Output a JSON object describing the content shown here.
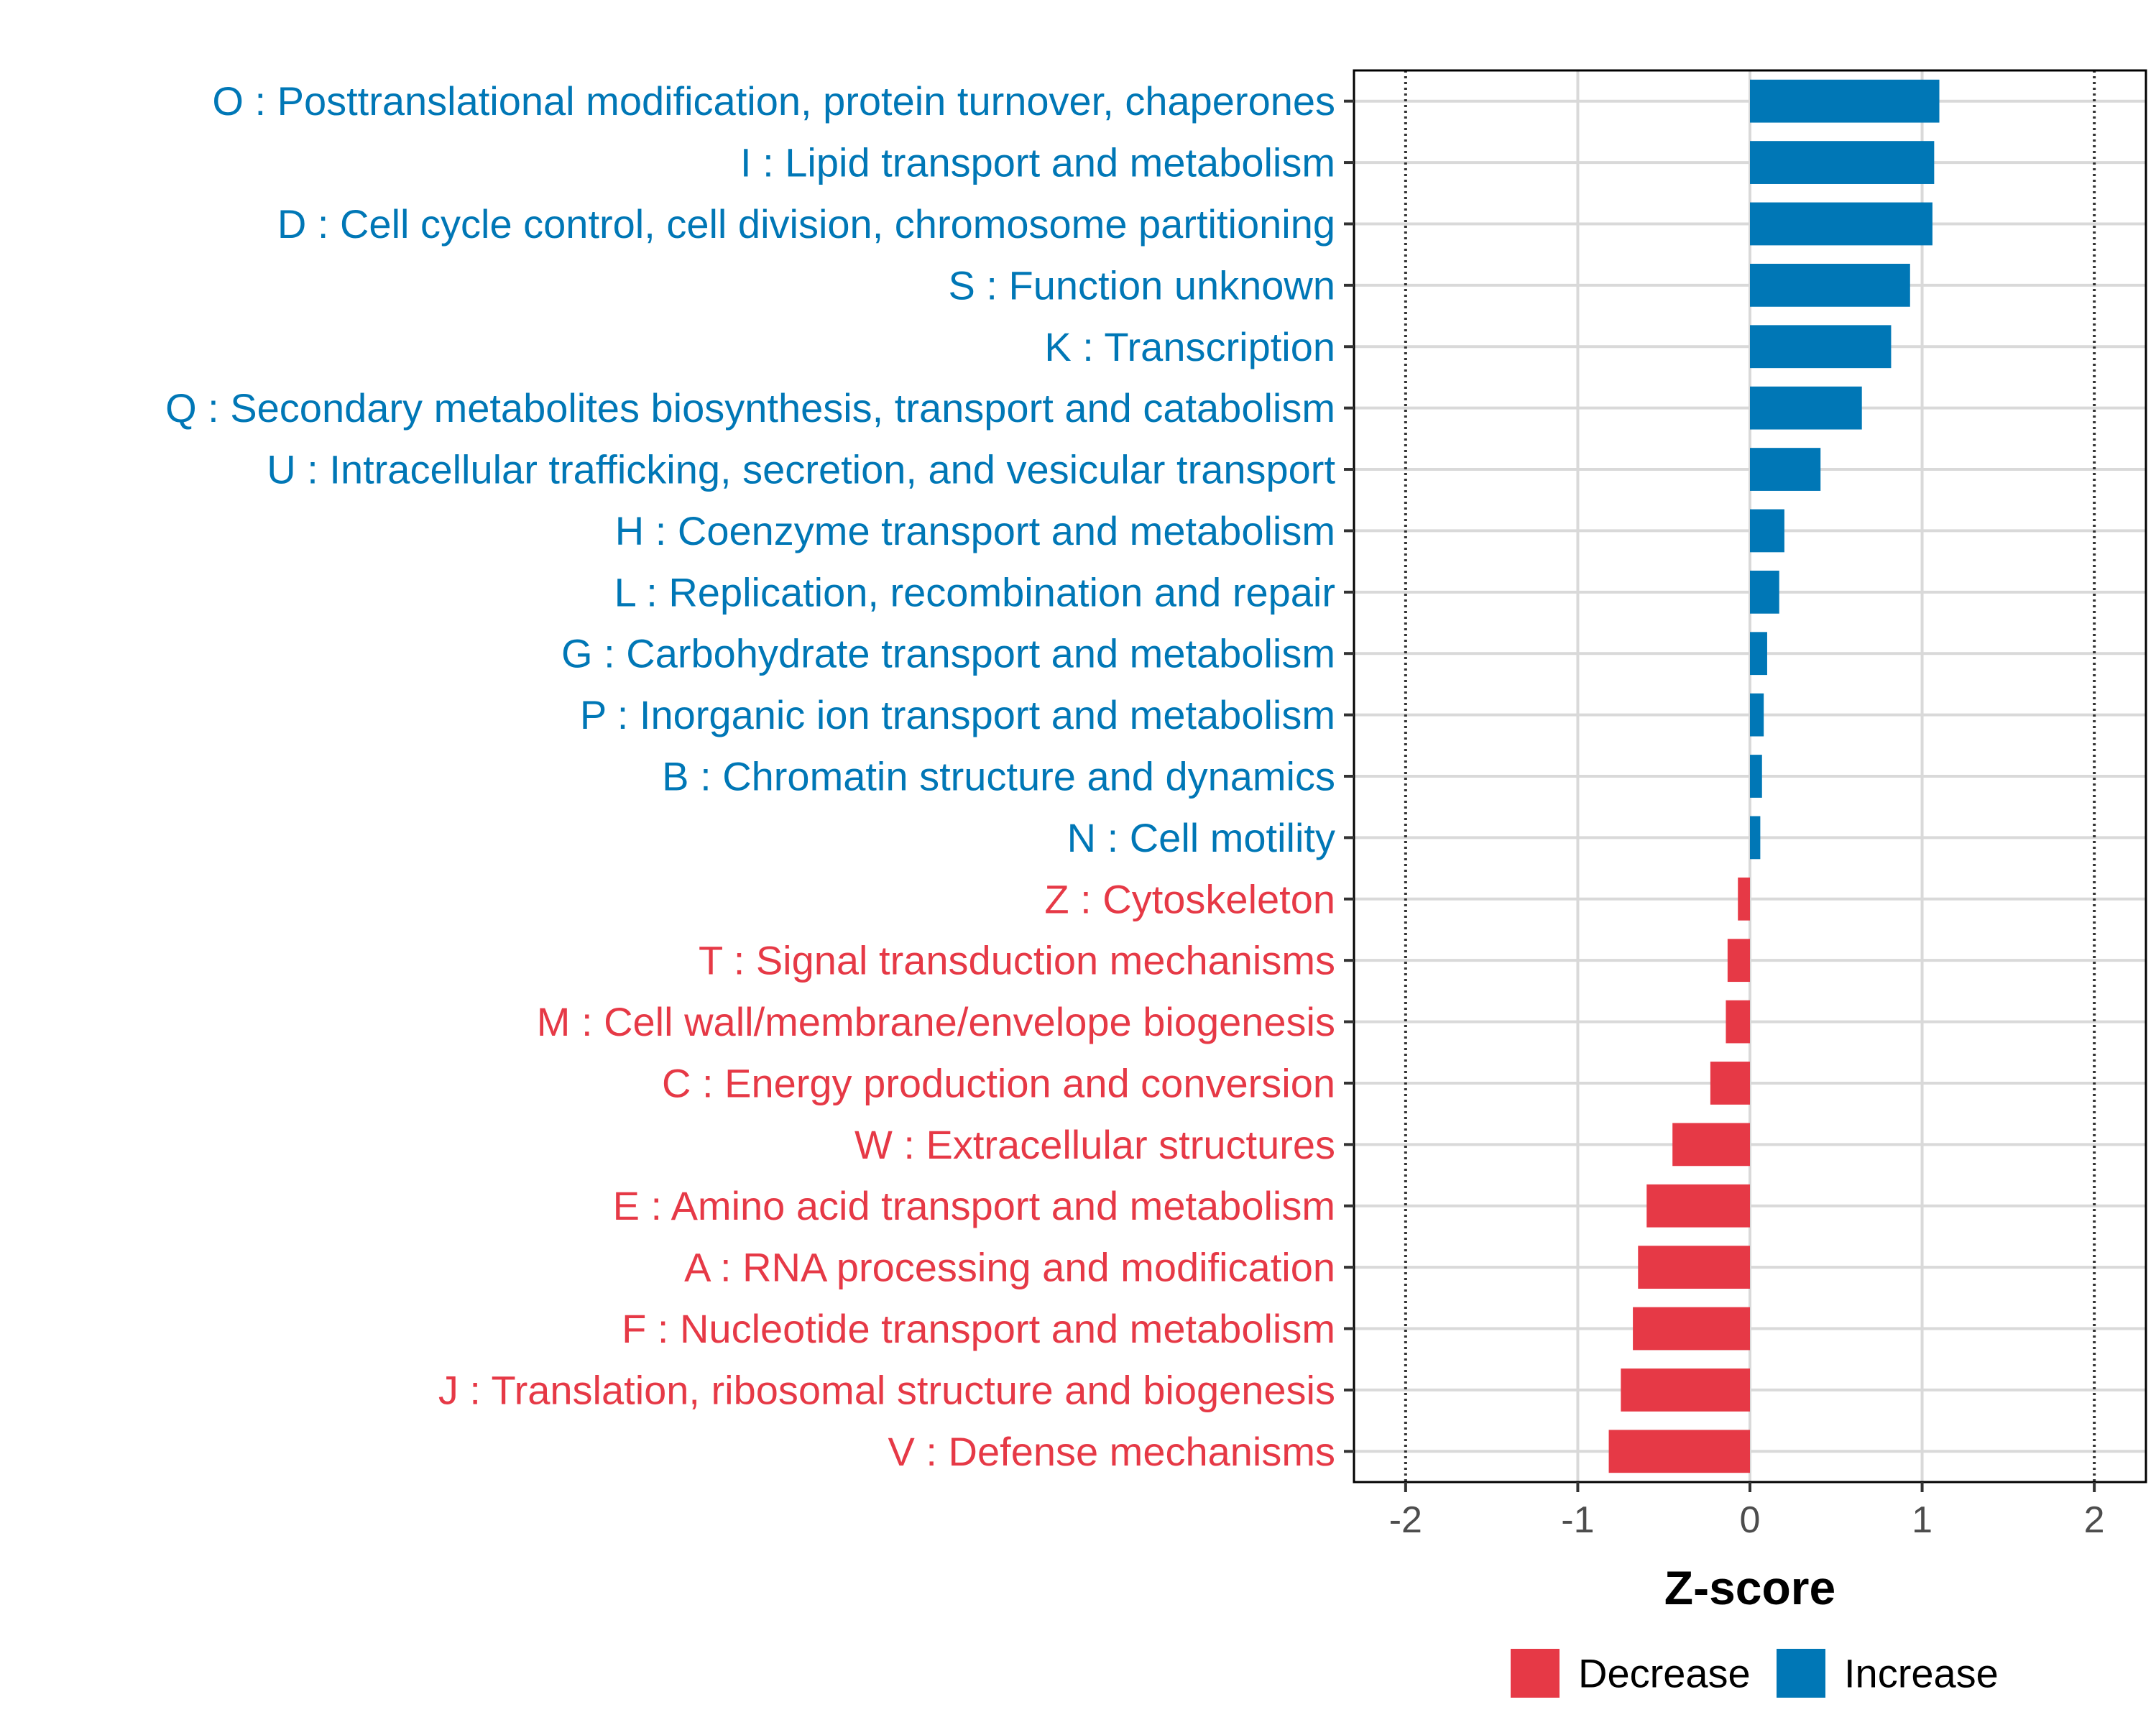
{
  "chart_data": {
    "type": "bar",
    "orientation": "horizontal",
    "title": "",
    "xlabel": "Z-score",
    "ylabel": "",
    "xlim": [
      -2.3,
      2.3
    ],
    "xticks": [
      -2,
      -1,
      0,
      1,
      2
    ],
    "xtick_labels": [
      "-2",
      "-1",
      "0",
      "1",
      "2"
    ],
    "reference_lines": [
      -2,
      2
    ],
    "grid": true,
    "colors": {
      "Increase": "#0077b6",
      "Decrease": "#e63946",
      "grid": "#d9d9d9",
      "axis": "#000000"
    },
    "legend": {
      "placement": "bottom",
      "items": [
        {
          "label": "Decrease",
          "color": "#e63946"
        },
        {
          "label": "Increase",
          "color": "#0077b6"
        }
      ]
    },
    "categories": [
      "O : Posttranslational modification, protein turnover, chaperones",
      "I : Lipid transport and metabolism",
      "D : Cell cycle control, cell division, chromosome partitioning",
      "S : Function unknown",
      "K : Transcription",
      "Q : Secondary metabolites biosynthesis, transport and catabolism",
      "U : Intracellular trafficking, secretion, and vesicular transport",
      "H : Coenzyme transport and metabolism",
      "L : Replication, recombination and repair",
      "G : Carbohydrate transport and metabolism",
      "P : Inorganic ion transport and metabolism",
      "B : Chromatin structure and dynamics",
      "N : Cell motility",
      "Z : Cytoskeleton",
      "T : Signal transduction mechanisms",
      "M : Cell wall/membrane/envelope biogenesis",
      "C : Energy production and conversion",
      "W : Extracellular structures",
      "E : Amino acid transport and metabolism",
      "A : RNA processing and modification",
      "F : Nucleotide transport and metabolism",
      "J : Translation, ribosomal structure and biogenesis",
      "V : Defense mechanisms"
    ],
    "values": [
      1.1,
      1.07,
      1.06,
      0.93,
      0.82,
      0.65,
      0.41,
      0.2,
      0.17,
      0.1,
      0.08,
      0.07,
      0.06,
      -0.07,
      -0.13,
      -0.14,
      -0.23,
      -0.45,
      -0.6,
      -0.65,
      -0.68,
      -0.75,
      -0.82
    ],
    "groups": [
      "Increase",
      "Increase",
      "Increase",
      "Increase",
      "Increase",
      "Increase",
      "Increase",
      "Increase",
      "Increase",
      "Increase",
      "Increase",
      "Increase",
      "Increase",
      "Decrease",
      "Decrease",
      "Decrease",
      "Decrease",
      "Decrease",
      "Decrease",
      "Decrease",
      "Decrease",
      "Decrease",
      "Decrease"
    ]
  }
}
